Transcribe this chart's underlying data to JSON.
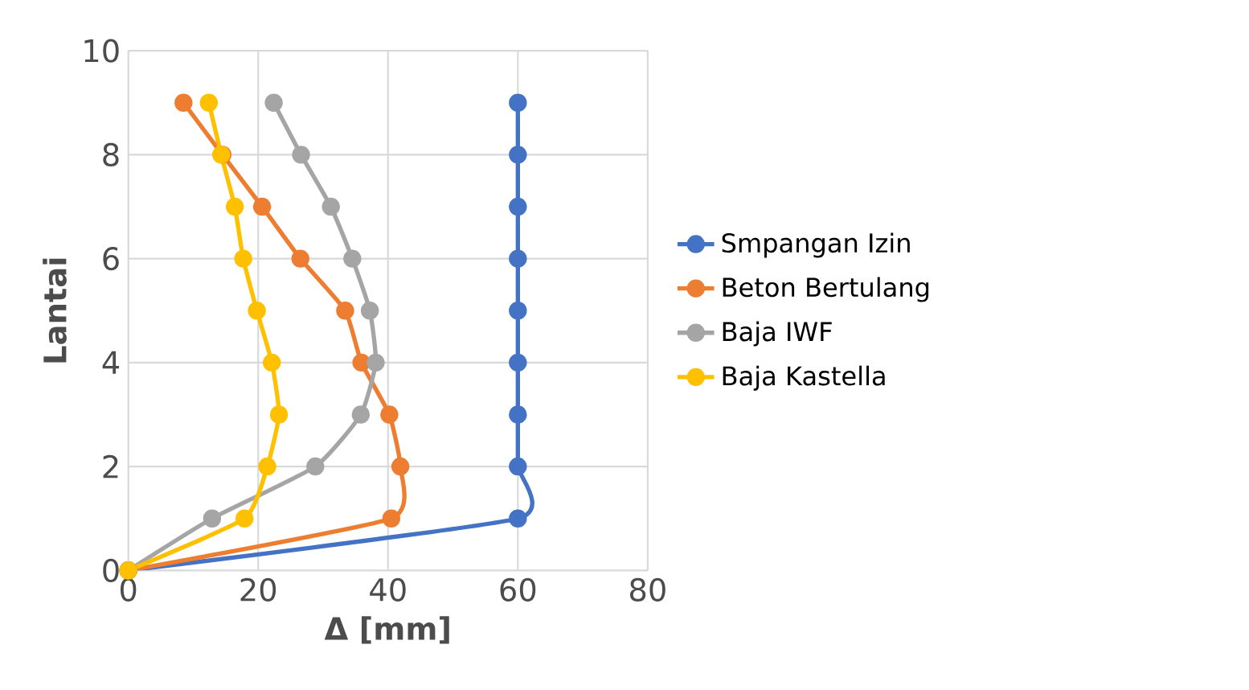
{
  "chart_data": {
    "type": "line",
    "xlabel": "Δ [mm]",
    "ylabel": "Lantai",
    "xlim": [
      0,
      80
    ],
    "xticks": [
      0,
      20,
      40,
      60,
      80
    ],
    "ylim": [
      0,
      10
    ],
    "yticks": [
      0,
      2,
      4,
      6,
      8,
      10
    ],
    "grid": true,
    "legend": "right",
    "marker": "circle",
    "line_style": "solid",
    "series": [
      {
        "name": "Smpangan Izin",
        "color": "#4472c4",
        "x": [
          0,
          60,
          60,
          60,
          60,
          60,
          60,
          60,
          60,
          60
        ],
        "values": [
          0,
          1,
          2,
          3,
          4,
          5,
          6,
          7,
          8,
          9
        ]
      },
      {
        "name": "Beton Bertulang",
        "color": "#ed7d31",
        "x": [
          0,
          40.5,
          41.9,
          40.2,
          35.9,
          33.4,
          26.5,
          20.6,
          14.5,
          8.5
        ],
        "values": [
          0,
          1,
          2,
          3,
          4,
          5,
          6,
          7,
          8,
          9
        ]
      },
      {
        "name": "Baja IWF",
        "color": "#a5a5a5",
        "x": [
          0,
          12.9,
          28.8,
          35.8,
          38.1,
          37.2,
          34.5,
          31.2,
          26.6,
          22.4
        ],
        "values": [
          0,
          1,
          2,
          3,
          4,
          5,
          6,
          7,
          8,
          9
        ]
      },
      {
        "name": "Baja Kastella",
        "color": "#ffc000",
        "x": [
          0,
          17.9,
          21.4,
          23.2,
          22.1,
          19.8,
          17.7,
          16.4,
          14.3,
          12.4
        ],
        "values": [
          0,
          1,
          2,
          3,
          4,
          5,
          6,
          7,
          8,
          9
        ]
      }
    ]
  }
}
